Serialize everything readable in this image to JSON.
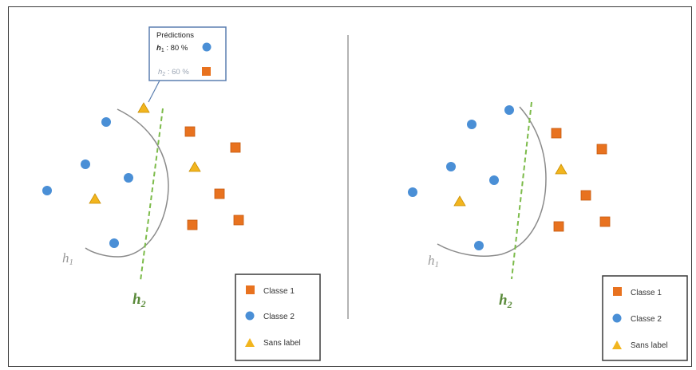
{
  "predictions_box": {
    "title": "Prédictions",
    "rows": [
      {
        "hyp": "h",
        "sub": "1",
        "value": " : 80 %",
        "marker": "circle"
      },
      {
        "hyp": "h",
        "sub": "2",
        "value": " : 60 %",
        "marker": "square"
      }
    ]
  },
  "labels": {
    "h1": {
      "main": "h",
      "sub": "1"
    },
    "h2": {
      "main": "h",
      "sub": "2"
    }
  },
  "legend": [
    {
      "marker": "square",
      "text": "Classe 1"
    },
    {
      "marker": "circle",
      "text": "Classe 2"
    },
    {
      "marker": "triangle",
      "text": "Sans label"
    }
  ],
  "colors": {
    "classe1": "#e8721f",
    "classe2": "#4a8fd6",
    "sans_label": "#f2b51e",
    "h1_curve": "#8a8a8a",
    "h2_line": "#7cbb4a",
    "divider": "#9a9a9a"
  }
}
